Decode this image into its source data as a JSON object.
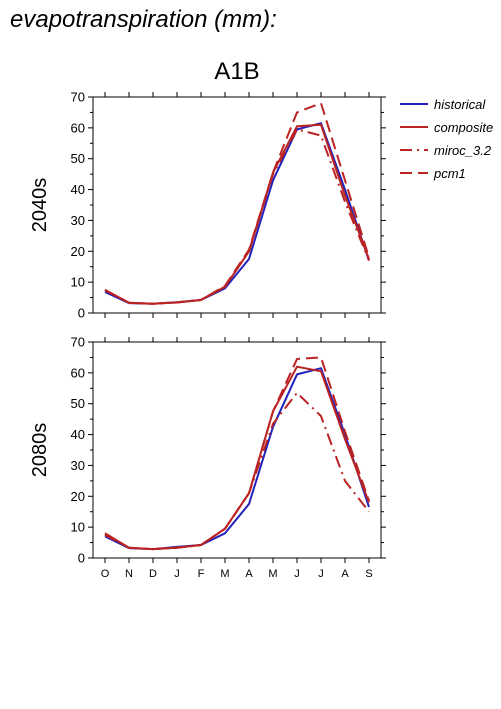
{
  "heading": "evapotranspiration (mm):",
  "scenario": "A1B",
  "colors": {
    "historical": "#2222bb",
    "model": "#bb2222"
  },
  "legend": [
    {
      "label": "historical",
      "color": "#2222bb",
      "dash": "solid"
    },
    {
      "label": "composite",
      "color": "#bb2222",
      "dash": "solid"
    },
    {
      "label": "miroc_3.2",
      "color": "#bb2222",
      "dash": "dashdot"
    },
    {
      "label": "pcm1",
      "color": "#bb2222",
      "dash": "dashed"
    }
  ],
  "chart_data": [
    {
      "type": "line",
      "row_label": "2040s",
      "categories": [
        "O",
        "N",
        "D",
        "J",
        "F",
        "M",
        "A",
        "M",
        "J",
        "J",
        "A",
        "S"
      ],
      "ylim": [
        0,
        70
      ],
      "yticks": [
        0,
        10,
        20,
        30,
        40,
        50,
        60,
        70
      ],
      "series": [
        {
          "name": "historical",
          "values": [
            6.8,
            3.2,
            3.0,
            3.5,
            4.2,
            8.0,
            17.5,
            43.0,
            59.5,
            61.5,
            40.0,
            17.0
          ]
        },
        {
          "name": "composite",
          "values": [
            7.5,
            3.3,
            3.0,
            3.4,
            4.2,
            8.5,
            20.0,
            45.5,
            60.5,
            61.0,
            38.0,
            17.5
          ]
        },
        {
          "name": "miroc_3.2",
          "values": [
            7.4,
            3.3,
            3.0,
            3.4,
            4.3,
            8.5,
            20.0,
            45.0,
            59.5,
            57.5,
            36.0,
            17.0
          ]
        },
        {
          "name": "pcm1",
          "values": [
            7.5,
            3.3,
            3.0,
            3.5,
            4.2,
            8.8,
            20.5,
            45.5,
            65.0,
            68.0,
            43.0,
            18.0
          ]
        }
      ]
    },
    {
      "type": "line",
      "row_label": "2080s",
      "categories": [
        "O",
        "N",
        "D",
        "J",
        "F",
        "M",
        "A",
        "M",
        "J",
        "J",
        "A",
        "S"
      ],
      "ylim": [
        0,
        70
      ],
      "yticks": [
        0,
        10,
        20,
        30,
        40,
        50,
        60,
        70
      ],
      "series": [
        {
          "name": "historical",
          "values": [
            7.0,
            3.2,
            2.9,
            3.6,
            4.2,
            8.0,
            17.5,
            42.5,
            59.5,
            61.5,
            40.0,
            16.5
          ]
        },
        {
          "name": "composite",
          "values": [
            8.0,
            3.3,
            2.9,
            3.3,
            4.2,
            9.5,
            21.0,
            47.5,
            62.0,
            60.5,
            38.5,
            18.0
          ]
        },
        {
          "name": "miroc_3.2",
          "values": [
            7.5,
            3.3,
            2.9,
            3.3,
            4.2,
            9.5,
            21.0,
            43.5,
            53.5,
            46.0,
            25.0,
            15.0
          ]
        },
        {
          "name": "pcm1",
          "values": [
            8.0,
            3.3,
            2.9,
            3.4,
            4.2,
            9.5,
            21.0,
            47.5,
            64.5,
            65.0,
            41.0,
            18.5
          ]
        }
      ]
    }
  ]
}
